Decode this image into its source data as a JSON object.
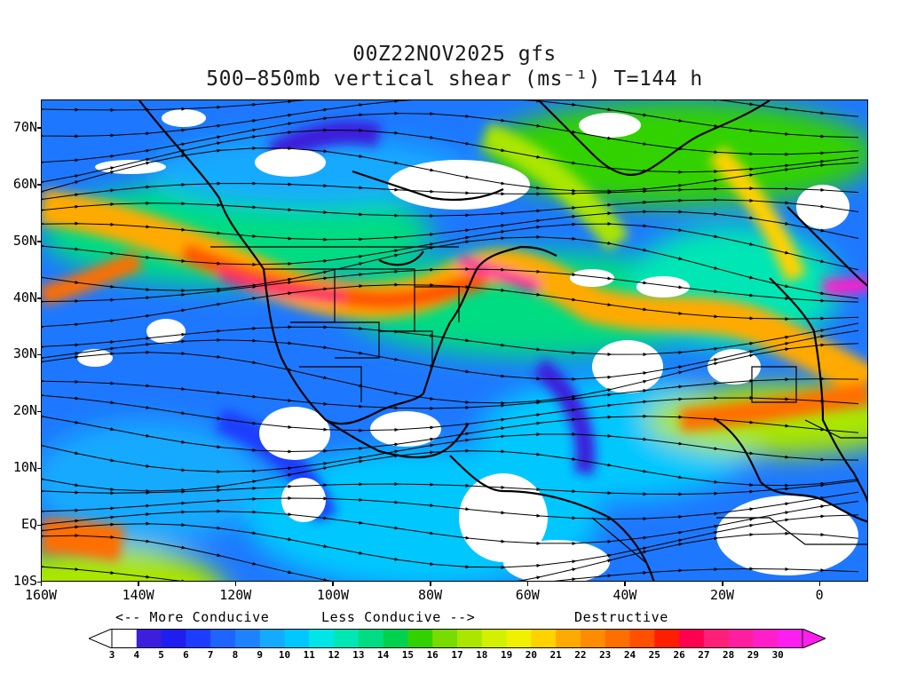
{
  "header": {
    "title_line1": "00Z22NOV2025 gfs",
    "title_line2": "500−850mb vertical shear (ms⁻¹) T=144 h"
  },
  "map": {
    "projection": "equirectangular",
    "lon_range": [
      -160,
      10
    ],
    "lat_range": [
      -10,
      75
    ],
    "field": "500-850mb vertical wind shear",
    "overlay": "streamlines with arrowheads, coastlines and political borders"
  },
  "y_axis": {
    "labels": [
      "70N",
      "60N",
      "50N",
      "40N",
      "30N",
      "20N",
      "10N",
      "EQ",
      "10S"
    ],
    "lats": [
      70,
      60,
      50,
      40,
      30,
      20,
      10,
      0,
      -10
    ]
  },
  "x_axis": {
    "labels": [
      "160W",
      "140W",
      "120W",
      "100W",
      "80W",
      "60W",
      "40W",
      "20W",
      "0"
    ],
    "lons": [
      -160,
      -140,
      -120,
      -100,
      -80,
      -60,
      -40,
      -20,
      0
    ]
  },
  "legend": {
    "more_conducive": "<-- More Conducive",
    "less_conducive": "Less Conducive -->",
    "destructive": "Destructive",
    "levels": [
      "3",
      "4",
      "5",
      "6",
      "7",
      "8",
      "9",
      "10",
      "11",
      "12",
      "13",
      "14",
      "15",
      "16",
      "17",
      "18",
      "19",
      "20",
      "21",
      "22",
      "23",
      "24",
      "25",
      "26",
      "27",
      "28",
      "29",
      "30"
    ],
    "colors": [
      "#ffffff",
      "#3c1edc",
      "#1e1ef0",
      "#1e3cff",
      "#1e64ff",
      "#1e82ff",
      "#14aaff",
      "#00c8ff",
      "#00e6e6",
      "#00e6b4",
      "#00dc82",
      "#00d250",
      "#32d200",
      "#78dc00",
      "#aae600",
      "#d2f000",
      "#f0f000",
      "#ffd200",
      "#ffaa00",
      "#ff8c00",
      "#ff6e00",
      "#ff5000",
      "#ff1e00",
      "#ff0050",
      "#ff1e78",
      "#ff1ea0",
      "#ff1ec8",
      "#ff1ef0"
    ],
    "below_color": "#ffffff",
    "above_color": "#ff1ef0"
  }
}
